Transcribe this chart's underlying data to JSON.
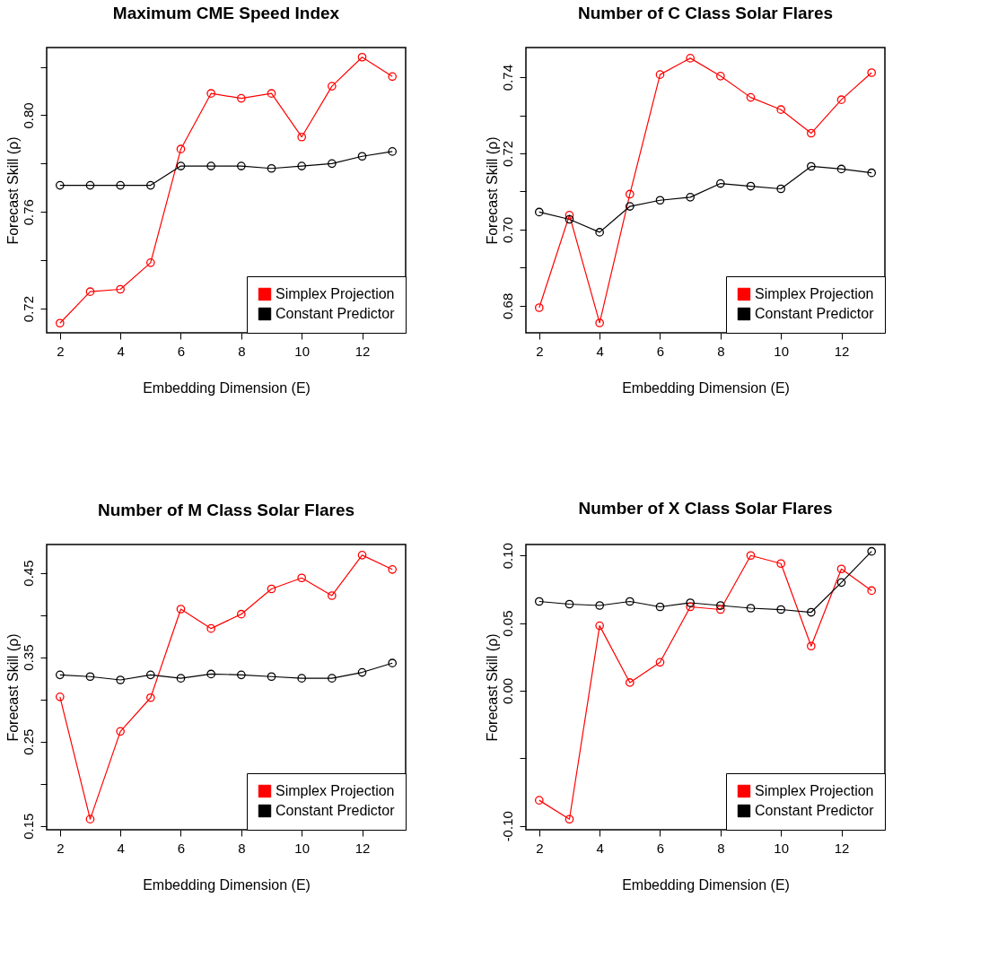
{
  "chart_data": [
    {
      "type": "line",
      "title": "Maximum CME Speed  Index",
      "xlabel": "Embedding Dimension (E)",
      "ylabel": "Forecast Skill (ρ)",
      "x": [
        2,
        3,
        4,
        5,
        6,
        7,
        8,
        9,
        10,
        11,
        12,
        13
      ],
      "xlim": [
        1.56,
        13.44
      ],
      "xticks": [
        2,
        4,
        6,
        8,
        10,
        12
      ],
      "ylim": [
        0.71,
        0.828
      ],
      "yticks": [
        {
          "value": 0.72,
          "label": "0.72"
        },
        {
          "value": 0.74,
          "label": null
        },
        {
          "value": 0.76,
          "label": "0.76"
        },
        {
          "value": 0.78,
          "label": null
        },
        {
          "value": 0.8,
          "label": "0.80"
        },
        {
          "value": 0.82,
          "label": null
        }
      ],
      "marker": "circle",
      "grid": false,
      "legend": "bottom right",
      "series": [
        {
          "name": "Simplex Projection",
          "color": "#ff0000",
          "values": [
            0.714,
            0.727,
            0.728,
            0.739,
            0.786,
            0.809,
            0.807,
            0.809,
            0.791,
            0.812,
            0.824,
            0.816
          ]
        },
        {
          "name": "Constant Predictor",
          "color": "#000000",
          "values": [
            0.771,
            0.771,
            0.771,
            0.771,
            0.779,
            0.779,
            0.779,
            0.778,
            0.779,
            0.78,
            0.783,
            0.785
          ]
        }
      ]
    },
    {
      "type": "line",
      "title": "Number of C Class Solar  Flares",
      "xlabel": "Embedding Dimension (E)",
      "ylabel": "Forecast Skill (ρ)",
      "x": [
        2,
        3,
        4,
        5,
        6,
        7,
        8,
        9,
        10,
        11,
        12,
        13
      ],
      "xlim": [
        1.56,
        13.44
      ],
      "xticks": [
        2,
        4,
        6,
        8,
        10,
        12
      ],
      "ylim": [
        0.6729,
        0.7478
      ],
      "yticks": [
        {
          "value": 0.68,
          "label": "0.68"
        },
        {
          "value": 0.69,
          "label": null
        },
        {
          "value": 0.7,
          "label": "0.70"
        },
        {
          "value": 0.71,
          "label": null
        },
        {
          "value": 0.72,
          "label": "0.72"
        },
        {
          "value": 0.73,
          "label": null
        },
        {
          "value": 0.74,
          "label": "0.74"
        }
      ],
      "marker": "circle",
      "grid": false,
      "legend": "bottom right",
      "series": [
        {
          "name": "Simplex Projection",
          "color": "#ff0000",
          "values": [
            0.6795,
            0.7038,
            0.6755,
            0.7093,
            0.7407,
            0.745,
            0.7403,
            0.7347,
            0.7315,
            0.7253,
            0.7341,
            0.7412
          ]
        },
        {
          "name": "Constant Predictor",
          "color": "#000000",
          "values": [
            0.7046,
            0.7027,
            0.6993,
            0.7061,
            0.7077,
            0.7085,
            0.7121,
            0.7114,
            0.7107,
            0.7166,
            0.7159,
            0.7149
          ]
        }
      ]
    },
    {
      "type": "line",
      "title": "Number of M Class Solar  Flares",
      "xlabel": "Embedding Dimension (E)",
      "ylabel": "Forecast Skill (ρ)",
      "x": [
        2,
        3,
        4,
        5,
        6,
        7,
        8,
        9,
        10,
        11,
        12,
        13
      ],
      "xlim": [
        1.56,
        13.44
      ],
      "xticks": [
        2,
        4,
        6,
        8,
        10,
        12
      ],
      "ylim": [
        0.1454,
        0.4836
      ],
      "yticks": [
        {
          "value": 0.15,
          "label": "0.15"
        },
        {
          "value": 0.2,
          "label": null
        },
        {
          "value": 0.25,
          "label": "0.25"
        },
        {
          "value": 0.3,
          "label": null
        },
        {
          "value": 0.35,
          "label": "0.35"
        },
        {
          "value": 0.4,
          "label": null
        },
        {
          "value": 0.45,
          "label": "0.45"
        }
      ],
      "marker": "circle",
      "grid": false,
      "legend": "bottom right",
      "series": [
        {
          "name": "Simplex Projection",
          "color": "#ff0000",
          "values": [
            0.303,
            0.158,
            0.262,
            0.302,
            0.407,
            0.384,
            0.401,
            0.431,
            0.444,
            0.423,
            0.471,
            0.454
          ]
        },
        {
          "name": "Constant Predictor",
          "color": "#000000",
          "values": [
            0.329,
            0.327,
            0.323,
            0.329,
            0.325,
            0.33,
            0.329,
            0.327,
            0.325,
            0.325,
            0.332,
            0.343
          ]
        }
      ]
    },
    {
      "type": "line",
      "title": "Number of X Class Solar  Flares",
      "xlabel": "Embedding Dimension (E)",
      "ylabel": "Forecast Skill (ρ)",
      "x": [
        2,
        3,
        4,
        5,
        6,
        7,
        8,
        9,
        10,
        11,
        12,
        13
      ],
      "xlim": [
        1.56,
        13.44
      ],
      "xticks": [
        2,
        4,
        6,
        8,
        10,
        12
      ],
      "ylim": [
        -0.1028,
        0.1081
      ],
      "yticks": [
        {
          "value": -0.1,
          "label": "-0.10"
        },
        {
          "value": -0.05,
          "label": null
        },
        {
          "value": 0.0,
          "label": "0.00"
        },
        {
          "value": 0.05,
          "label": "0.05"
        },
        {
          "value": 0.1,
          "label": "0.10"
        }
      ],
      "marker": "circle",
      "grid": false,
      "legend": "bottom right",
      "series": [
        {
          "name": "Simplex Projection",
          "color": "#ff0000",
          "values": [
            -0.081,
            -0.095,
            0.048,
            0.006,
            0.021,
            0.062,
            0.06,
            0.1,
            0.094,
            0.033,
            0.09,
            0.074
          ]
        },
        {
          "name": "Constant Predictor",
          "color": "#000000",
          "values": [
            0.066,
            0.064,
            0.063,
            0.066,
            0.062,
            0.065,
            0.063,
            0.061,
            0.06,
            0.058,
            0.08,
            0.103
          ]
        }
      ]
    }
  ]
}
